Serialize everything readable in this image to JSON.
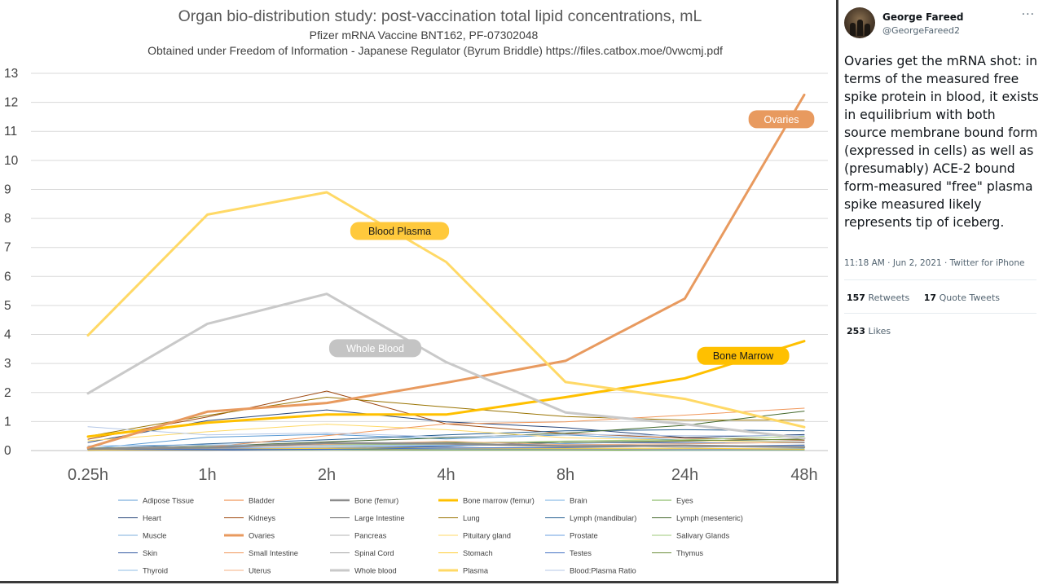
{
  "chart_data": {
    "type": "line",
    "title": "Organ bio-distribution study: post-vaccination total lipid concentrations, mL",
    "subtitle": "Pfizer mRNA Vaccine BNT162, PF-07302048",
    "subtitle2": "Obtained under Freedom of Information - Japanese Regulator (Byrum Briddle) https://files.catbox.moe/0vwcmj.pdf",
    "categories": [
      "0.25h",
      "1h",
      "2h",
      "4h",
      "8h",
      "24h",
      "48h"
    ],
    "ylim": [
      0,
      13
    ],
    "yticks": [
      0,
      1,
      2,
      3,
      4,
      5,
      6,
      7,
      8,
      9,
      10,
      11,
      12,
      13
    ],
    "grid": true,
    "legend_position": "bottom",
    "series": [
      {
        "name": "Adipose Tissue",
        "color": "#5b9bd5",
        "width": 1,
        "values": [
          0.06,
          0.46,
          0.56,
          0.4,
          0.54,
          0.36,
          0.3
        ]
      },
      {
        "name": "Bladder",
        "color": "#ed7d31",
        "width": 1,
        "values": [
          0.04,
          0.03,
          0.05,
          0.03,
          0.04,
          0.03,
          0.04
        ]
      },
      {
        "name": "Bone (femur)",
        "color": "#8c8c8c",
        "width": 2.5,
        "values": [
          0.06,
          0.1,
          0.26,
          0.24,
          0.15,
          0.17,
          0.12
        ]
      },
      {
        "name": "Bone marrow (femur)",
        "color": "#ffc000",
        "width": 3,
        "values": [
          0.48,
          0.96,
          1.24,
          1.24,
          1.84,
          2.49,
          3.77
        ]
      },
      {
        "name": "Brain",
        "color": "#70ade0",
        "width": 1,
        "values": [
          0.05,
          0.07,
          0.07,
          0.06,
          0.04,
          0.05,
          0.07
        ]
      },
      {
        "name": "Eyes",
        "color": "#70ad47",
        "width": 1,
        "values": [
          0.01,
          0.02,
          0.03,
          0.02,
          0.02,
          0.01,
          0.02
        ]
      },
      {
        "name": "Heart",
        "color": "#264478",
        "width": 1,
        "values": [
          0.28,
          1.03,
          1.4,
          0.99,
          0.79,
          0.45,
          0.55
        ]
      },
      {
        "name": "Kidneys",
        "color": "#9e480e",
        "width": 1,
        "values": [
          0.39,
          1.16,
          2.05,
          0.92,
          0.59,
          0.43,
          0.36
        ]
      },
      {
        "name": "Large Intestine",
        "color": "#636363",
        "width": 1,
        "values": [
          0.01,
          0.06,
          0.06,
          0.14,
          0.29,
          0.32,
          0.4
        ]
      },
      {
        "name": "Lung",
        "color": "#997300",
        "width": 1,
        "values": [
          0.49,
          1.21,
          1.84,
          1.5,
          1.17,
          1.05,
          1.05
        ]
      },
      {
        "name": "Lymph (mandibular)",
        "color": "#255e91",
        "width": 1,
        "values": [
          0.06,
          0.23,
          0.37,
          0.54,
          0.68,
          0.72,
          0.68
        ]
      },
      {
        "name": "Lymph (mesenteric)",
        "color": "#43682b",
        "width": 1,
        "values": [
          0.05,
          0.15,
          0.3,
          0.44,
          0.6,
          0.87,
          1.36
        ]
      },
      {
        "name": "Muscle",
        "color": "#7cafdd",
        "width": 1,
        "values": [
          0.04,
          0.04,
          0.08,
          0.05,
          0.06,
          0.02,
          0.04
        ]
      },
      {
        "name": "Ovaries",
        "color": "#e89a5f",
        "width": 3,
        "values": [
          0.1,
          1.34,
          1.64,
          2.34,
          3.09,
          5.24,
          12.26
        ]
      },
      {
        "name": "Pancreas",
        "color": "#b3b3b3",
        "width": 1,
        "values": [
          0.08,
          0.17,
          0.13,
          0.16,
          0.22,
          0.1,
          0.2
        ]
      },
      {
        "name": "Pituitary gland",
        "color": "#ffd966",
        "width": 1,
        "values": [
          0.34,
          0.65,
          0.91,
          0.72,
          0.44,
          0.35,
          0.29
        ]
      },
      {
        "name": "Prostate",
        "color": "#6a9fe0",
        "width": 1,
        "values": [
          0.06,
          0.09,
          0.09,
          0.16,
          0.24,
          0.15,
          0.12
        ]
      },
      {
        "name": "Salivary Glands",
        "color": "#9dc97a",
        "width": 1,
        "values": [
          0.04,
          0.14,
          0.2,
          0.22,
          0.33,
          0.37,
          0.49
        ]
      },
      {
        "name": "Skin",
        "color": "#335aa1",
        "width": 1,
        "values": [
          0.01,
          0.01,
          0.05,
          0.15,
          0.29,
          0.26,
          0.27
        ]
      },
      {
        "name": "Small Intestine",
        "color": "#f1975a",
        "width": 1,
        "values": [
          0.03,
          0.12,
          0.51,
          0.92,
          0.99,
          1.22,
          1.46
        ]
      },
      {
        "name": "Spinal Cord",
        "color": "#a5a5a5",
        "width": 1,
        "values": [
          0.04,
          0.07,
          0.08,
          0.08,
          0.05,
          0.04,
          0.04
        ]
      },
      {
        "name": "Stomach",
        "color": "#ffcd33",
        "width": 1,
        "values": [
          0.01,
          0.03,
          0.08,
          0.09,
          0.08,
          0.08,
          0.05
        ]
      },
      {
        "name": "Testes",
        "color": "#4472c4",
        "width": 1,
        "values": [
          0.04,
          0.04,
          0.04,
          0.09,
          0.1,
          0.16,
          0.18
        ]
      },
      {
        "name": "Thymus",
        "color": "#6b8e3a",
        "width": 1,
        "values": [
          0.09,
          0.1,
          0.23,
          0.28,
          0.28,
          0.34,
          0.39
        ]
      },
      {
        "name": "Thyroid",
        "color": "#8fbce6",
        "width": 1,
        "values": [
          0.16,
          0.2,
          0.17,
          0.18,
          0.19,
          0.15,
          0.15
        ]
      },
      {
        "name": "Uterus",
        "color": "#f4b183",
        "width": 1,
        "values": [
          0.04,
          0.09,
          0.21,
          0.32,
          0.2,
          0.23,
          0.29
        ]
      },
      {
        "name": "Whole blood",
        "color": "#c9c9c9",
        "width": 3,
        "values": [
          1.97,
          4.37,
          5.4,
          3.05,
          1.31,
          0.91,
          0.42
        ]
      },
      {
        "name": "Plasma",
        "color": "#ffd966",
        "width": 3,
        "values": [
          3.97,
          8.13,
          8.9,
          6.5,
          2.36,
          1.78,
          0.81
        ]
      },
      {
        "name": "Blood:Plasma Ratio",
        "color": "#b4c7e7",
        "width": 1,
        "values": [
          0.82,
          0.54,
          0.61,
          0.47,
          0.56,
          0.51,
          0.52
        ]
      }
    ],
    "annotations": [
      {
        "text": "Ovaries",
        "series": "Ovaries",
        "index": 6,
        "fill": "#e89a5f",
        "text_color": "#ffffff"
      },
      {
        "text": "Blood Plasma",
        "series": "Plasma",
        "index": 3,
        "fill": "#ffc93c",
        "text_color": "#1a1a1a"
      },
      {
        "text": "Whole Blood",
        "series": "Whole blood",
        "index": 3,
        "fill": "#c4c4c4",
        "text_color": "#ffffff"
      },
      {
        "text": "Bone Marrow",
        "series": "Bone marrow (femur)",
        "index": 6,
        "fill": "#ffc000",
        "text_color": "#1a1a1a"
      }
    ]
  },
  "tweet": {
    "author_name": "George Fareed",
    "author_handle": "@GeorgeFareed2",
    "more_icon": "ellipsis-icon",
    "text": "Ovaries get the mRNA shot: in terms of the measured free spike protein in blood,  it exists in equilibrium with both source membrane bound form (expressed in cells) as well as (presumably) ACE-2 bound form-measured \"free\" plasma spike measured likely represents tip of iceberg.",
    "timestamp": "11:18 AM · Jun 2, 2021 · Twitter for iPhone",
    "retweets_count": "157",
    "retweets_label": "Retweets",
    "quote_count": "17",
    "quote_label": "Quote Tweets",
    "likes_count": "253",
    "likes_label": "Likes"
  }
}
